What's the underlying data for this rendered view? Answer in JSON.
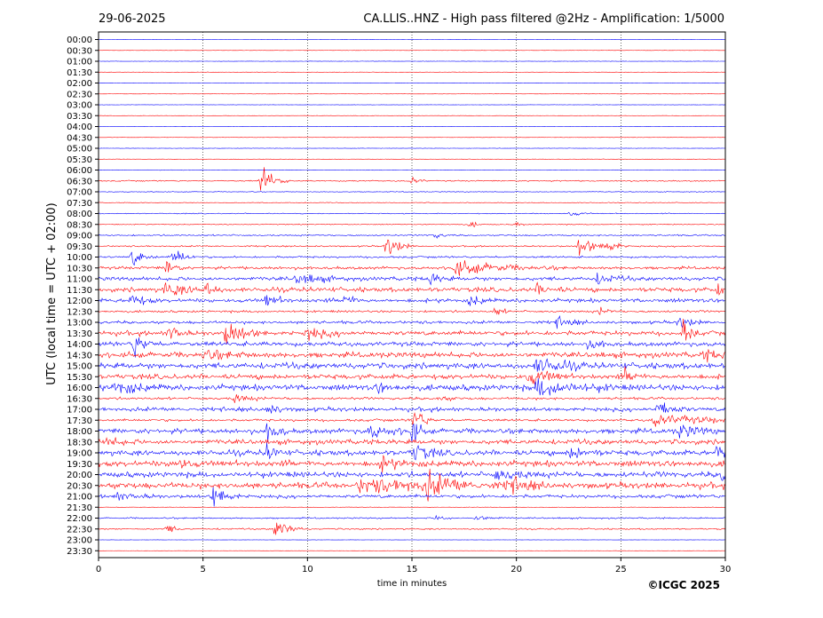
{
  "header": {
    "date": "29-06-2025",
    "title": "CA.LLIS..HNZ - High pass filtered @2Hz - Amplification: 1/5000"
  },
  "credit": "©ICGC 2025",
  "colors": {
    "odd_rows": "#ff0000",
    "even_rows": "#0000ff",
    "grid": "#000000"
  },
  "chart_data": {
    "type": "line",
    "title": "CA.LLIS..HNZ - High pass filtered @2Hz - Amplification: 1/5000",
    "xlabel": "time in minutes",
    "ylabel": "UTC (local time = UTC + 02:00)",
    "xlim": [
      0,
      30
    ],
    "x_ticks": [
      "0",
      "5",
      "10",
      "15",
      "20",
      "25",
      "30"
    ],
    "grid": "vertical dotted lines every 5 minutes",
    "row_colors": [
      "#0000ff",
      "#ff0000"
    ],
    "series": [
      {
        "label": "00:00",
        "noise": 0.1,
        "events": []
      },
      {
        "label": "00:30",
        "noise": 0.1,
        "events": []
      },
      {
        "label": "01:00",
        "noise": 0.15,
        "events": []
      },
      {
        "label": "01:30",
        "noise": 0.15,
        "events": []
      },
      {
        "label": "02:00",
        "noise": 0.15,
        "events": []
      },
      {
        "label": "02:30",
        "noise": 0.12,
        "events": []
      },
      {
        "label": "03:00",
        "noise": 0.12,
        "events": []
      },
      {
        "label": "03:30",
        "noise": 0.12,
        "events": []
      },
      {
        "label": "04:00",
        "noise": 0.12,
        "events": []
      },
      {
        "label": "04:30",
        "noise": 0.12,
        "events": []
      },
      {
        "label": "05:00",
        "noise": 0.15,
        "events": []
      },
      {
        "label": "05:30",
        "noise": 0.15,
        "events": []
      },
      {
        "label": "06:00",
        "noise": 0.2,
        "events": []
      },
      {
        "label": "06:30",
        "noise": 0.5,
        "events": [
          {
            "t": 7.8,
            "amp": 14,
            "dur": 0.5
          },
          {
            "t": 15.0,
            "amp": 4,
            "dur": 0.3
          }
        ]
      },
      {
        "label": "07:00",
        "noise": 0.3,
        "events": []
      },
      {
        "label": "07:30",
        "noise": 0.3,
        "events": []
      },
      {
        "label": "08:00",
        "noise": 0.4,
        "events": [
          {
            "t": 22.6,
            "amp": 3,
            "dur": 0.4
          }
        ]
      },
      {
        "label": "08:30",
        "noise": 0.4,
        "events": [
          {
            "t": 17.8,
            "amp": 3,
            "dur": 0.3
          },
          {
            "t": 20.0,
            "amp": 3,
            "dur": 0.2
          }
        ]
      },
      {
        "label": "09:00",
        "noise": 0.6,
        "events": [
          {
            "t": 16.0,
            "amp": 3,
            "dur": 0.4
          }
        ]
      },
      {
        "label": "09:30",
        "noise": 0.6,
        "events": [
          {
            "t": 13.8,
            "amp": 12,
            "dur": 0.5
          },
          {
            "t": 23.0,
            "amp": 8,
            "dur": 0.8
          },
          {
            "t": 24.3,
            "amp": 6,
            "dur": 0.4
          }
        ]
      },
      {
        "label": "10:00",
        "noise": 0.8,
        "events": [
          {
            "t": 1.6,
            "amp": 8,
            "dur": 0.5
          },
          {
            "t": 3.6,
            "amp": 10,
            "dur": 0.4
          }
        ]
      },
      {
        "label": "10:30",
        "noise": 1.2,
        "events": [
          {
            "t": 17.0,
            "amp": 6,
            "dur": 2.0
          },
          {
            "t": 3.3,
            "amp": 10,
            "dur": 0.3
          }
        ]
      },
      {
        "label": "11:00",
        "noise": 1.6,
        "events": [
          {
            "t": 9.5,
            "amp": 5,
            "dur": 1.0
          },
          {
            "t": 15.8,
            "amp": 5,
            "dur": 0.5
          },
          {
            "t": 23.9,
            "amp": 5,
            "dur": 0.6
          }
        ]
      },
      {
        "label": "11:30",
        "noise": 1.8,
        "events": [
          {
            "t": 3.2,
            "amp": 6,
            "dur": 1.0
          },
          {
            "t": 5.2,
            "amp": 7,
            "dur": 0.3
          },
          {
            "t": 21.0,
            "amp": 4,
            "dur": 0.6
          },
          {
            "t": 29.6,
            "amp": 6,
            "dur": 0.3
          }
        ]
      },
      {
        "label": "12:00",
        "noise": 1.6,
        "events": [
          {
            "t": 1.5,
            "amp": 6,
            "dur": 0.6
          },
          {
            "t": 8.0,
            "amp": 6,
            "dur": 0.5
          },
          {
            "t": 11.8,
            "amp": 5,
            "dur": 0.4
          },
          {
            "t": 17.8,
            "amp": 5,
            "dur": 0.5
          }
        ]
      },
      {
        "label": "12:30",
        "noise": 0.9,
        "events": [
          {
            "t": 19.0,
            "amp": 4,
            "dur": 0.3
          },
          {
            "t": 24.0,
            "amp": 4,
            "dur": 0.3
          }
        ]
      },
      {
        "label": "13:00",
        "noise": 1.2,
        "events": [
          {
            "t": 21.9,
            "amp": 5,
            "dur": 0.6
          },
          {
            "t": 27.8,
            "amp": 6,
            "dur": 0.5
          }
        ]
      },
      {
        "label": "13:30",
        "noise": 1.8,
        "events": [
          {
            "t": 3.4,
            "amp": 8,
            "dur": 0.4
          },
          {
            "t": 6.1,
            "amp": 10,
            "dur": 0.8
          },
          {
            "t": 10.0,
            "amp": 5,
            "dur": 0.8
          },
          {
            "t": 28.0,
            "amp": 12,
            "dur": 0.3
          }
        ]
      },
      {
        "label": "14:00",
        "noise": 1.8,
        "events": [
          {
            "t": 1.7,
            "amp": 12,
            "dur": 0.4
          },
          {
            "t": 23.5,
            "amp": 5,
            "dur": 0.5
          }
        ]
      },
      {
        "label": "14:30",
        "noise": 2.2,
        "events": [
          {
            "t": 5.0,
            "amp": 4,
            "dur": 1.0
          },
          {
            "t": 29.0,
            "amp": 4,
            "dur": 0.8
          }
        ]
      },
      {
        "label": "15:00",
        "noise": 2.4,
        "events": [
          {
            "t": 21.0,
            "amp": 8,
            "dur": 1.0
          }
        ]
      },
      {
        "label": "15:30",
        "noise": 2.0,
        "events": [
          {
            "t": 20.6,
            "amp": 8,
            "dur": 0.8
          },
          {
            "t": 25.2,
            "amp": 6,
            "dur": 0.4
          }
        ]
      },
      {
        "label": "16:00",
        "noise": 2.4,
        "events": [
          {
            "t": 0.8,
            "amp": 6,
            "dur": 1.0
          },
          {
            "t": 21.0,
            "amp": 8,
            "dur": 1.5
          },
          {
            "t": 13.4,
            "amp": 4,
            "dur": 0.5
          }
        ]
      },
      {
        "label": "16:30",
        "noise": 1.0,
        "events": [
          {
            "t": 6.5,
            "amp": 4,
            "dur": 0.6
          },
          {
            "t": 16.3,
            "amp": 3,
            "dur": 0.4
          }
        ]
      },
      {
        "label": "17:00",
        "noise": 1.6,
        "events": [
          {
            "t": 8.1,
            "amp": 5,
            "dur": 0.5
          },
          {
            "t": 26.8,
            "amp": 8,
            "dur": 0.6
          }
        ]
      },
      {
        "label": "17:30",
        "noise": 1.0,
        "events": [
          {
            "t": 26.6,
            "amp": 5,
            "dur": 2.5
          },
          {
            "t": 15.1,
            "amp": 12,
            "dur": 0.4
          }
        ]
      },
      {
        "label": "18:00",
        "noise": 2.0,
        "events": [
          {
            "t": 8.1,
            "amp": 10,
            "dur": 0.4
          },
          {
            "t": 13.0,
            "amp": 5,
            "dur": 1.0
          },
          {
            "t": 15.0,
            "amp": 10,
            "dur": 0.3
          },
          {
            "t": 27.8,
            "amp": 6,
            "dur": 0.8
          }
        ]
      },
      {
        "label": "18:30",
        "noise": 2.0,
        "events": [
          {
            "t": 0.4,
            "amp": 4,
            "dur": 0.6
          }
        ]
      },
      {
        "label": "19:00",
        "noise": 2.2,
        "events": [
          {
            "t": 8.1,
            "amp": 8,
            "dur": 0.3
          },
          {
            "t": 15.1,
            "amp": 8,
            "dur": 0.6
          },
          {
            "t": 22.6,
            "amp": 6,
            "dur": 0.6
          },
          {
            "t": 29.6,
            "amp": 8,
            "dur": 0.6
          }
        ]
      },
      {
        "label": "19:30",
        "noise": 2.4,
        "events": [
          {
            "t": 3.6,
            "amp": 5,
            "dur": 0.6
          },
          {
            "t": 13.5,
            "amp": 5,
            "dur": 0.8
          }
        ]
      },
      {
        "label": "20:00",
        "noise": 2.2,
        "events": [
          {
            "t": 19.0,
            "amp": 5,
            "dur": 1.0
          },
          {
            "t": 29.8,
            "amp": 7,
            "dur": 0.3
          }
        ]
      },
      {
        "label": "20:30",
        "noise": 2.4,
        "events": [
          {
            "t": 12.5,
            "amp": 6,
            "dur": 3.0
          },
          {
            "t": 15.7,
            "amp": 10,
            "dur": 1.0
          },
          {
            "t": 19.6,
            "amp": 7,
            "dur": 0.8
          }
        ]
      },
      {
        "label": "21:00",
        "noise": 1.4,
        "events": [
          {
            "t": 0.8,
            "amp": 4,
            "dur": 0.8
          },
          {
            "t": 5.5,
            "amp": 12,
            "dur": 0.5
          }
        ]
      },
      {
        "label": "21:30",
        "noise": 0.2,
        "events": []
      },
      {
        "label": "22:00",
        "noise": 0.6,
        "events": [
          {
            "t": 16.2,
            "amp": 4,
            "dur": 0.3
          },
          {
            "t": 18.0,
            "amp": 3,
            "dur": 0.6
          }
        ]
      },
      {
        "label": "22:30",
        "noise": 0.6,
        "events": [
          {
            "t": 3.3,
            "amp": 5,
            "dur": 0.3
          },
          {
            "t": 8.5,
            "amp": 12,
            "dur": 0.5
          }
        ]
      },
      {
        "label": "23:00",
        "noise": 0.1,
        "events": []
      },
      {
        "label": "23:30",
        "noise": 0.1,
        "events": []
      }
    ]
  }
}
